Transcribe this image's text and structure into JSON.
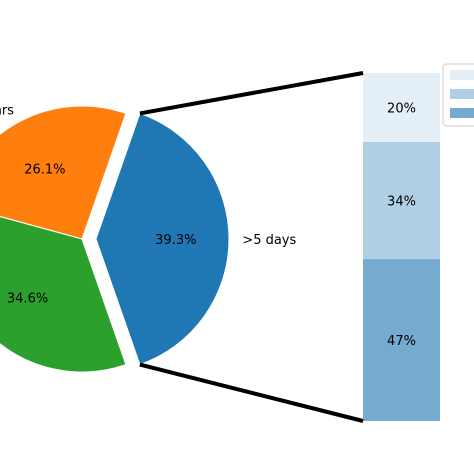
{
  "chart_data": [
    {
      "type": "pie",
      "categories": [
        "hrs",
        "",
        ">5 days"
      ],
      "values": [
        26.1,
        34.6,
        39.3
      ],
      "labels": [
        "26.1%",
        "34.6%",
        "39.3%"
      ],
      "colors": [
        "#ff7f0e",
        "#2ca02c",
        "#1f77b4"
      ],
      "exploded": ">5 days"
    },
    {
      "type": "bar",
      "stacked": true,
      "values": [
        47,
        34,
        20
      ],
      "labels": [
        "47%",
        "34%",
        "20%"
      ],
      "colors": [
        "#76abd0",
        "#b0cfe5",
        "#e5eff7"
      ],
      "legend": {
        "location": "top-right",
        "entries": [
          "",
          "",
          ""
        ]
      }
    }
  ]
}
